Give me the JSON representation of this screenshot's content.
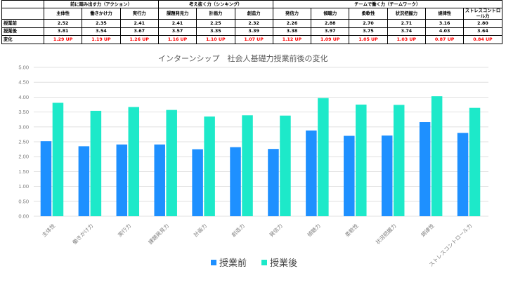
{
  "table": {
    "groups": [
      {
        "label": "前に踏み出す力（アクション）",
        "span": 3
      },
      {
        "label": "考え抜く力（シンキング）",
        "span": 3
      },
      {
        "label": "チームで働く力（チームワーク）",
        "span": 6
      }
    ],
    "columns": [
      "主体性",
      "働きかけ力",
      "実行力",
      "課題発見力",
      "計画力",
      "創造力",
      "発信力",
      "傾聴力",
      "柔軟性",
      "状況把握力",
      "規律性",
      "ストレスコントロール力"
    ],
    "rows": [
      {
        "label": "授業前",
        "values": [
          "2.52",
          "2.35",
          "2.41",
          "2.41",
          "2.25",
          "2.32",
          "2.26",
          "2.88",
          "2.70",
          "2.71",
          "3.16",
          "2.80"
        ],
        "highlight": false
      },
      {
        "label": "授業後",
        "values": [
          "3.81",
          "3.54",
          "3.67",
          "3.57",
          "3.35",
          "3.39",
          "3.38",
          "3.97",
          "3.75",
          "3.74",
          "4.03",
          "3.64"
        ],
        "highlight": false
      },
      {
        "label": "変化",
        "values": [
          "1.29 UP",
          "1.19 UP",
          "1.26 UP",
          "1.16 UP",
          "1.10 UP",
          "1.07 UP",
          "1.12 UP",
          "1.09 UP",
          "1.05 UP",
          "1.03 UP",
          "0.87 UP",
          "0.84 UP"
        ],
        "highlight": true
      }
    ]
  },
  "chart_data": {
    "type": "bar",
    "title": "インターンシップ　社会人基礎力授業前後の変化",
    "categories": [
      "主体性",
      "働きかけ力",
      "実行力",
      "課題発見力",
      "計画力",
      "創造力",
      "発信力",
      "傾聴力",
      "柔軟性",
      "状況把握力",
      "規律性",
      "ストレスコントロール力"
    ],
    "series": [
      {
        "name": "授業前",
        "color": "#1e90ff",
        "values": [
          2.52,
          2.35,
          2.41,
          2.41,
          2.25,
          2.32,
          2.26,
          2.88,
          2.7,
          2.71,
          3.16,
          2.8
        ]
      },
      {
        "name": "授業後",
        "color": "#1de9c9",
        "values": [
          3.81,
          3.54,
          3.67,
          3.57,
          3.35,
          3.39,
          3.38,
          3.97,
          3.75,
          3.74,
          4.03,
          3.64
        ]
      }
    ],
    "ylim": [
      0,
      5
    ],
    "yticks": [
      "0.00",
      "0.50",
      "1.00",
      "1.50",
      "2.00",
      "2.50",
      "3.00",
      "3.50",
      "4.00",
      "4.50",
      "5.00"
    ],
    "grid": true,
    "legend": "bottom",
    "xlabel": "",
    "ylabel": ""
  }
}
